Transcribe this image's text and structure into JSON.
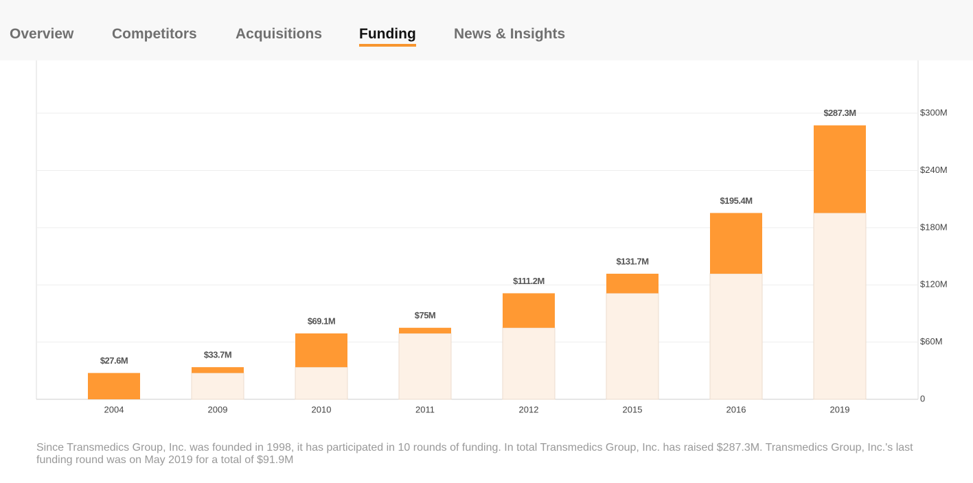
{
  "tabs": [
    "Overview",
    "Competitors",
    "Acquisitions",
    "Funding",
    "News & Insights"
  ],
  "chart_data": {
    "type": "bar",
    "categories": [
      "2004",
      "2009",
      "2010",
      "2011",
      "2012",
      "2015",
      "2016",
      "2019"
    ],
    "series": [
      {
        "color": "#fdf1e6",
        "values": [
          0,
          27.6,
          33.7,
          69.1,
          75,
          111.2,
          131.7,
          195.4
        ]
      },
      {
        "color": "#ff9933",
        "values": [
          27.6,
          6.1,
          35.4,
          5.9,
          36.2,
          20.5,
          63.7,
          91.9
        ]
      }
    ],
    "totals": {
      "values": [
        27.6,
        33.7,
        69.1,
        75,
        111.2,
        131.7,
        195.4,
        287.3
      ],
      "value_labels": [
        "$27.6M",
        "$33.7M",
        "$69.1M",
        "$75M",
        "$111.2M",
        "$131.7M",
        "$195.4M",
        "$287.3M"
      ]
    },
    "ylim": [
      0,
      354
    ],
    "yticks": [
      0,
      {
        "value": 60,
        "label": "$60M"
      },
      {
        "value": 120,
        "label": "$120M"
      },
      {
        "value": 180,
        "label": "$180M"
      },
      {
        "value": 240,
        "label": "$240M"
      },
      {
        "value": 300,
        "label": "$300M"
      }
    ],
    "grid": true
  },
  "footer": {
    "text": "Since Transmedics Group, Inc. was founded in 1998, it has participated in 10 rounds of funding. In total Transmedics Group, Inc. has raised $287.3M. Transmedics Group, Inc.'s last funding round was on May 2019 for a total of $91.9M"
  }
}
